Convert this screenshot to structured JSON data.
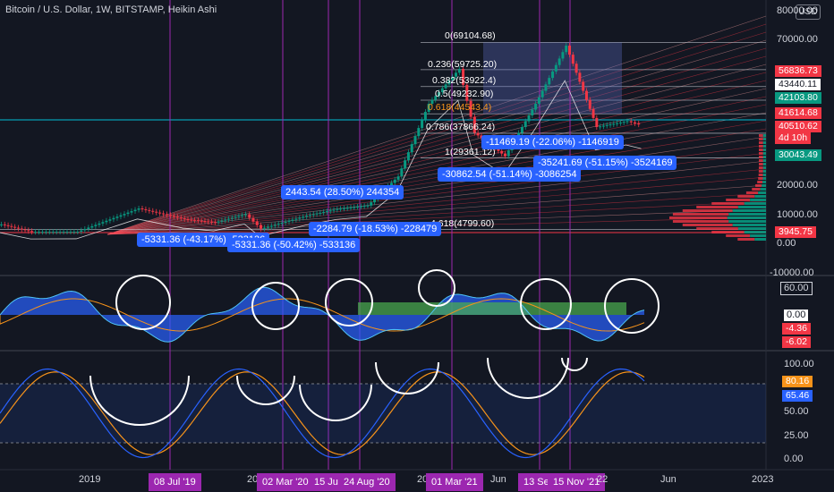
{
  "header": {
    "title": "Bitcoin / U.S. Dollar, 1W, BITSTAMP, Heikin Ashi",
    "currency_button": "USD"
  },
  "price_axis": {
    "ticks": [
      "80000.00",
      "70000.00",
      "20000.00",
      "10000.00",
      "0.00",
      "-10000.00"
    ],
    "badges": [
      {
        "text": "56836.73",
        "bg": "#f23645",
        "fg": "#ffffff"
      },
      {
        "text": "43440.11",
        "bg": "#ffffff",
        "fg": "#131722"
      },
      {
        "text": "42103.80",
        "bg": "#089981",
        "fg": "#ffffff"
      },
      {
        "text": "41614.68",
        "bg": "#f23645",
        "fg": "#ffffff"
      },
      {
        "text": "40510.62",
        "bg": "#f23645",
        "fg": "#ffffff"
      },
      {
        "text": "4d 10h",
        "bg": "#f23645",
        "fg": "#ffffff"
      },
      {
        "text": "30043.49",
        "bg": "#089981",
        "fg": "#ffffff"
      },
      {
        "text": "3945.75",
        "bg": "#f23645",
        "fg": "#ffffff"
      }
    ]
  },
  "fib_labels": [
    "0(69104.68)",
    "0.236(59725.20)",
    "0.382(53922.4)",
    "0.5(49232.90)",
    "0.618(44543.4)",
    "0.786(37866.24)",
    "1(29361.12)",
    "4.618(4799.60)"
  ],
  "measurements": [
    "-5331.36 (-43.17%) -533136",
    "-5331.36 (-50.42%) -533136",
    "2443.54 (28.50%) 244354",
    "-2284.79 (-18.53%) -228479",
    "-30862.54 (-51.14%) -3086254",
    "-11469.19 (-22.06%) -1146919",
    "-35241.69 (-51.15%) -3524169"
  ],
  "osc1_axis": {
    "ticks": [
      "60.00",
      "0.00"
    ],
    "badges": [
      {
        "text": "-4.36",
        "bg": "#f23645",
        "fg": "#ffffff"
      },
      {
        "text": "-6.02",
        "bg": "#f23645",
        "fg": "#ffffff"
      }
    ]
  },
  "osc2_axis": {
    "ticks": [
      "100.00",
      "75.00",
      "50.00",
      "25.00",
      "0.00"
    ],
    "badges": [
      {
        "text": "80.16",
        "bg": "#f7931a",
        "fg": "#ffffff"
      },
      {
        "text": "65.46",
        "bg": "#2962ff",
        "fg": "#ffffff"
      }
    ]
  },
  "time_axis": {
    "labels": [
      "2019",
      "20",
      "20",
      "Jun",
      "2023",
      "Jun"
    ],
    "highlighted": [
      "08 Jul '19",
      "02 Mar '20",
      "15 Jun",
      "24 Aug '20",
      "01 Mar '21",
      "13 Se",
      "15 Nov '21",
      "22"
    ]
  },
  "colors": {
    "background": "#131722",
    "bull": "#089981",
    "bear": "#f23645",
    "stoch_k": "#2962ff",
    "stoch_d": "#f7931a",
    "vertical_marker": "#9c27b0",
    "measure": "#2962ff"
  },
  "chart_data": {
    "type": "candlestick",
    "title": "Bitcoin / U.S. Dollar, 1W, BITSTAMP, Heikin Ashi",
    "xlabel": "",
    "ylabel": "USD",
    "x_range": [
      "2018-10",
      "2022-12"
    ],
    "price_points": [
      [
        "2018-10",
        6500
      ],
      [
        "2018-12",
        3945.75
      ],
      [
        "2019-03",
        4000
      ],
      [
        "2019-07",
        12000
      ],
      [
        "2019-10",
        8300
      ],
      [
        "2019-12",
        7200
      ],
      [
        "2020-02",
        10000
      ],
      [
        "2020-03",
        5000
      ],
      [
        "2020-06",
        9500
      ],
      [
        "2020-08",
        11800
      ],
      [
        "2020-10",
        13000
      ],
      [
        "2020-12",
        23000
      ],
      [
        "2021-02",
        48000
      ],
      [
        "2021-04",
        60000
      ],
      [
        "2021-05",
        38000
      ],
      [
        "2021-07",
        30000
      ],
      [
        "2021-09",
        48000
      ],
      [
        "2021-11",
        68000
      ],
      [
        "2022-01",
        40000
      ],
      [
        "2022-03",
        42000
      ],
      [
        "2022-04",
        40510.62
      ]
    ],
    "fibonacci": [
      {
        "level": 0,
        "price": 69104.68
      },
      {
        "level": 0.236,
        "price": 59725.2
      },
      {
        "level": 0.382,
        "price": 53922.4
      },
      {
        "level": 0.5,
        "price": 49232.9
      },
      {
        "level": 0.618,
        "price": 44543.4
      },
      {
        "level": 0.786,
        "price": 37866.24
      },
      {
        "level": 1,
        "price": 29361.12
      },
      {
        "level": 4.618,
        "price": 4799.6
      }
    ],
    "vertical_markers": [
      "08 Jul '19",
      "02 Mar '20",
      "15 Jun",
      "24 Aug '20",
      "01 Mar '21",
      "13 Se",
      "15 Nov '21"
    ],
    "stochastic_pane": {
      "ylim": [
        0,
        100
      ],
      "last_k": 65.46,
      "last_d": 80.16
    },
    "momentum_pane": {
      "last": [
        -4.36,
        -6.02
      ]
    }
  }
}
